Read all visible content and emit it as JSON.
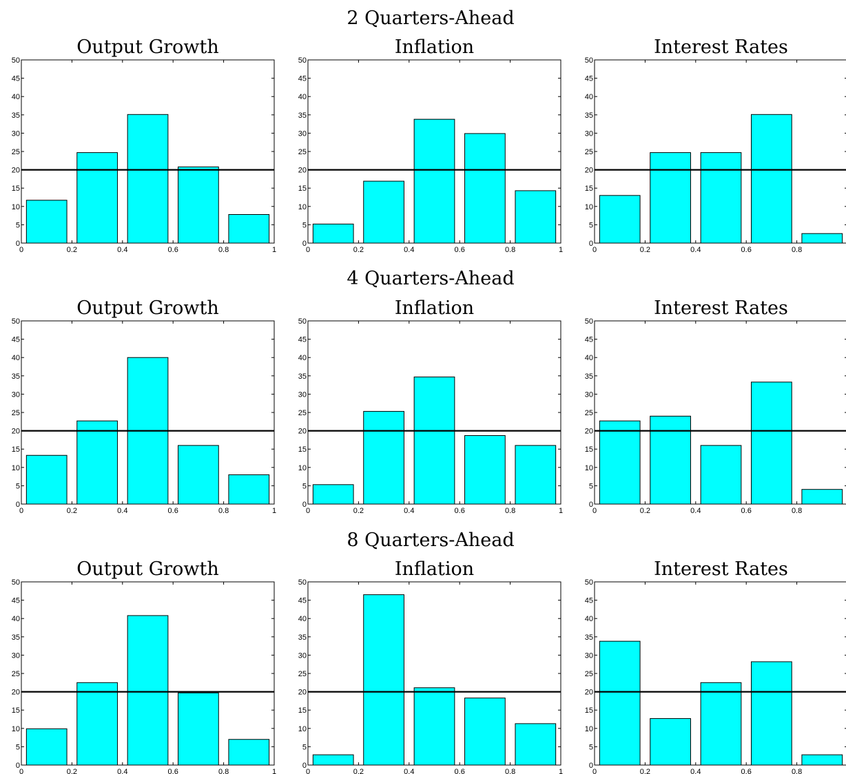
{
  "rows": [
    {
      "title": "2 Quarters-Ahead"
    },
    {
      "title": "4 Quarters-Ahead"
    },
    {
      "title": "8 Quarters-Ahead"
    }
  ],
  "style": {
    "bar_fill": "#00ffff",
    "bar_stroke": "#000000",
    "reference_line_color": "#000000"
  },
  "chart_data": [
    {
      "type": "bar",
      "group": "2 Quarters-Ahead",
      "title": "Output Growth",
      "bin_edges": [
        0,
        0.2,
        0.4,
        0.6,
        0.8,
        1
      ],
      "bin_centers": [
        0.1,
        0.3,
        0.5,
        0.7,
        0.9
      ],
      "values": [
        11.7,
        24.7,
        35.1,
        20.8,
        7.8
      ],
      "reference_line": 20,
      "xlim": [
        0,
        1
      ],
      "ylim": [
        0,
        50
      ],
      "xticks": [
        "0",
        "0.2",
        "0.4",
        "0.6",
        "0.8",
        "1"
      ],
      "yticks": [
        "0",
        "5",
        "10",
        "15",
        "20",
        "25",
        "30",
        "35",
        "40",
        "45",
        "50"
      ]
    },
    {
      "type": "bar",
      "group": "2 Quarters-Ahead",
      "title": "Inflation",
      "bin_edges": [
        0,
        0.2,
        0.4,
        0.6,
        0.8,
        1
      ],
      "bin_centers": [
        0.1,
        0.3,
        0.5,
        0.7,
        0.9
      ],
      "values": [
        5.2,
        16.9,
        33.8,
        29.9,
        14.3
      ],
      "reference_line": 20,
      "xlim": [
        0,
        1
      ],
      "ylim": [
        0,
        50
      ],
      "xticks": [
        "0",
        "0.2",
        "0.4",
        "0.6",
        "0.8",
        "1"
      ],
      "yticks": [
        "0",
        "5",
        "10",
        "15",
        "20",
        "25",
        "30",
        "35",
        "40",
        "45",
        "50"
      ]
    },
    {
      "type": "bar",
      "group": "2 Quarters-Ahead",
      "title": "Interest Rates",
      "bin_edges": [
        0,
        0.2,
        0.4,
        0.6,
        0.8,
        1
      ],
      "bin_centers": [
        0.1,
        0.3,
        0.5,
        0.7,
        0.9
      ],
      "values": [
        13.0,
        24.7,
        24.7,
        35.1,
        2.6
      ],
      "reference_line": 20,
      "xlim": [
        0,
        1
      ],
      "ylim": [
        0,
        50
      ],
      "xticks": [
        "0",
        "0.2",
        "0.4",
        "0.6",
        "0.8"
      ],
      "yticks": [
        "0",
        "5",
        "10",
        "15",
        "20",
        "25",
        "30",
        "35",
        "40",
        "45",
        "50"
      ]
    },
    {
      "type": "bar",
      "group": "4 Quarters-Ahead",
      "title": "Output Growth",
      "bin_edges": [
        0,
        0.2,
        0.4,
        0.6,
        0.8,
        1
      ],
      "bin_centers": [
        0.1,
        0.3,
        0.5,
        0.7,
        0.9
      ],
      "values": [
        13.3,
        22.7,
        40.0,
        16.0,
        8.0
      ],
      "reference_line": 20,
      "xlim": [
        0,
        1
      ],
      "ylim": [
        0,
        50
      ],
      "xticks": [
        "0",
        "0.2",
        "0.4",
        "0.6",
        "0.8",
        "1"
      ],
      "yticks": [
        "0",
        "5",
        "10",
        "15",
        "20",
        "25",
        "30",
        "35",
        "40",
        "45",
        "50"
      ]
    },
    {
      "type": "bar",
      "group": "4 Quarters-Ahead",
      "title": "Inflation",
      "bin_edges": [
        0,
        0.2,
        0.4,
        0.6,
        0.8,
        1
      ],
      "bin_centers": [
        0.1,
        0.3,
        0.5,
        0.7,
        0.9
      ],
      "values": [
        5.3,
        25.3,
        34.7,
        18.7,
        16.0
      ],
      "reference_line": 20,
      "xlim": [
        0,
        1
      ],
      "ylim": [
        0,
        50
      ],
      "xticks": [
        "0",
        "0.2",
        "0.4",
        "0.6",
        "0.8",
        "1"
      ],
      "yticks": [
        "0",
        "5",
        "10",
        "15",
        "20",
        "25",
        "30",
        "35",
        "40",
        "45",
        "50"
      ]
    },
    {
      "type": "bar",
      "group": "4 Quarters-Ahead",
      "title": "Interest Rates",
      "bin_edges": [
        0,
        0.2,
        0.4,
        0.6,
        0.8,
        1
      ],
      "bin_centers": [
        0.1,
        0.3,
        0.5,
        0.7,
        0.9
      ],
      "values": [
        22.7,
        24.0,
        16.0,
        33.3,
        4.0
      ],
      "reference_line": 20,
      "xlim": [
        0,
        1
      ],
      "ylim": [
        0,
        50
      ],
      "xticks": [
        "0",
        "0.2",
        "0.4",
        "0.6",
        "0.8"
      ],
      "yticks": [
        "0",
        "5",
        "10",
        "15",
        "20",
        "25",
        "30",
        "35",
        "40",
        "45",
        "50"
      ]
    },
    {
      "type": "bar",
      "group": "8 Quarters-Ahead",
      "title": "Output Growth",
      "bin_edges": [
        0,
        0.2,
        0.4,
        0.6,
        0.8,
        1
      ],
      "bin_centers": [
        0.1,
        0.3,
        0.5,
        0.7,
        0.9
      ],
      "values": [
        9.9,
        22.5,
        40.8,
        19.7,
        7.0
      ],
      "reference_line": 20,
      "xlim": [
        0,
        1
      ],
      "ylim": [
        0,
        50
      ],
      "xticks": [
        "0",
        "0.2",
        "0.4",
        "0.6",
        "0.8",
        "1"
      ],
      "yticks": [
        "0",
        "5",
        "10",
        "15",
        "20",
        "25",
        "30",
        "35",
        "40",
        "45",
        "50"
      ]
    },
    {
      "type": "bar",
      "group": "8 Quarters-Ahead",
      "title": "Inflation",
      "bin_edges": [
        0,
        0.2,
        0.4,
        0.6,
        0.8,
        1
      ],
      "bin_centers": [
        0.1,
        0.3,
        0.5,
        0.7,
        0.9
      ],
      "values": [
        2.8,
        46.5,
        21.1,
        18.3,
        11.3
      ],
      "reference_line": 20,
      "xlim": [
        0,
        1
      ],
      "ylim": [
        0,
        50
      ],
      "xticks": [
        "0",
        "0.2",
        "0.4",
        "0.6",
        "0.8",
        "1"
      ],
      "yticks": [
        "0",
        "5",
        "10",
        "15",
        "20",
        "25",
        "30",
        "35",
        "40",
        "45",
        "50"
      ]
    },
    {
      "type": "bar",
      "group": "8 Quarters-Ahead",
      "title": "Interest Rates",
      "bin_edges": [
        0,
        0.2,
        0.4,
        0.6,
        0.8,
        1
      ],
      "bin_centers": [
        0.1,
        0.3,
        0.5,
        0.7,
        0.9
      ],
      "values": [
        33.8,
        12.7,
        22.5,
        28.2,
        2.8
      ],
      "reference_line": 20,
      "xlim": [
        0,
        1
      ],
      "ylim": [
        0,
        50
      ],
      "xticks": [
        "0",
        "0.2",
        "0.4",
        "0.6",
        "0.8"
      ],
      "yticks": [
        "0",
        "5",
        "10",
        "15",
        "20",
        "25",
        "30",
        "35",
        "40",
        "45",
        "50"
      ]
    }
  ]
}
